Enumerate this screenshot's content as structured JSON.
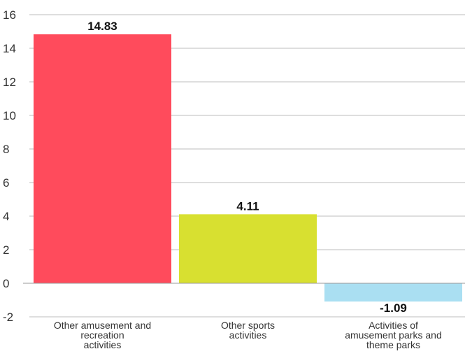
{
  "chart_data": {
    "type": "bar",
    "categories": [
      [
        "Other amusement and",
        "recreation",
        "activities"
      ],
      [
        "Other sports",
        "activities"
      ],
      [
        "Activities of",
        "amusement parks and",
        "theme parks"
      ]
    ],
    "values": [
      14.83,
      4.11,
      -1.09
    ],
    "value_labels": [
      "14.83",
      "4.11",
      "-1.09"
    ],
    "colors": [
      "#ff4b5c",
      "#d8e030",
      "#aadff2"
    ],
    "ylim": [
      -2,
      16
    ],
    "yticks": [
      -2,
      0,
      2,
      4,
      6,
      8,
      10,
      12,
      14,
      16
    ],
    "ytick_labels": [
      "-2",
      "0",
      "2",
      "4",
      "6",
      "8",
      "10",
      "12",
      "14",
      "16"
    ],
    "grid": true,
    "title": "",
    "xlabel": "",
    "ylabel": ""
  }
}
